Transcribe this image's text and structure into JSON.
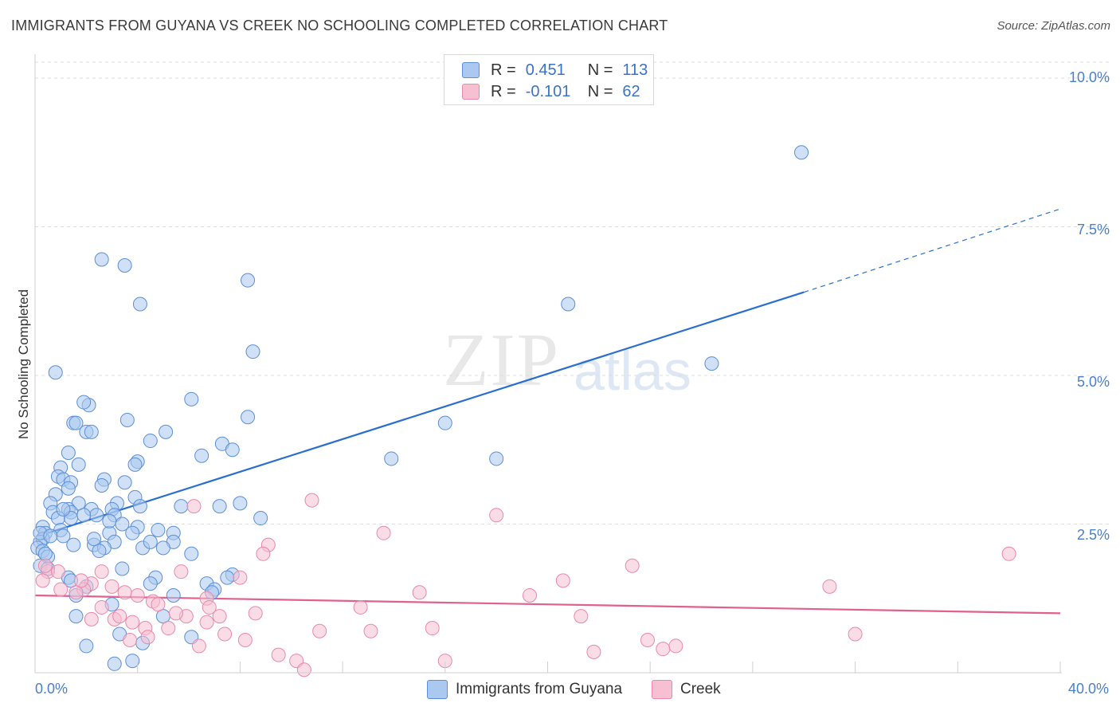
{
  "title": "IMMIGRANTS FROM GUYANA VS CREEK NO SCHOOLING COMPLETED CORRELATION CHART",
  "source": "Source: ZipAtlas.com",
  "watermark": {
    "zip": "ZIP",
    "atlas": "atlas"
  },
  "colors": {
    "blue_fill": "#aac8f0",
    "blue_stroke": "#5b8fd6",
    "blue_line": "#2a6fd0",
    "pink_fill": "#f6bfd2",
    "pink_stroke": "#e889aa",
    "pink_line": "#e0608e",
    "grid": "#dcdcdc",
    "tick_text": "#4a7fc9"
  },
  "legend": {
    "rows": [
      {
        "r_label": "R =",
        "r_value": "0.451",
        "n_label": "N =",
        "n_value": "113"
      },
      {
        "r_label": "R =",
        "r_value": "-0.101",
        "n_label": "N =",
        "n_value": "62"
      }
    ]
  },
  "bottom_legend": {
    "series1": "Immigrants from Guyana",
    "series2": "Creek"
  },
  "chart_data": {
    "type": "scatter",
    "title": "IMMIGRANTS FROM GUYANA VS CREEK NO SCHOOLING COMPLETED CORRELATION CHART",
    "xlabel": "",
    "ylabel": "No Schooling Completed",
    "xlim": [
      0,
      40
    ],
    "ylim": [
      0,
      10.5
    ],
    "x_tick_labels": [
      "0.0%",
      "40.0%"
    ],
    "y_ticks": [
      2.5,
      5.0,
      7.5,
      10.0
    ],
    "y_tick_labels": [
      "2.5%",
      "5.0%",
      "7.5%",
      "10.0%"
    ],
    "series": [
      {
        "name": "Immigrants from Guyana",
        "R": 0.451,
        "N": 113,
        "trend": {
          "x0": 0.5,
          "y0": 2.35,
          "x1": 30.0,
          "y1": 6.4,
          "dash_to_x": 40.0,
          "dash_to_y": 7.8
        },
        "points": [
          [
            2.6,
            6.95
          ],
          [
            3.5,
            6.85
          ],
          [
            8.3,
            6.6
          ],
          [
            4.1,
            6.2
          ],
          [
            8.5,
            5.4
          ],
          [
            0.8,
            5.05
          ],
          [
            6.1,
            4.6
          ],
          [
            2.1,
            4.5
          ],
          [
            1.9,
            4.55
          ],
          [
            8.3,
            4.3
          ],
          [
            3.6,
            4.25
          ],
          [
            1.5,
            4.2
          ],
          [
            1.6,
            4.2
          ],
          [
            2.0,
            4.05
          ],
          [
            2.2,
            4.05
          ],
          [
            5.1,
            4.05
          ],
          [
            4.5,
            3.9
          ],
          [
            7.3,
            3.85
          ],
          [
            1.3,
            3.7
          ],
          [
            6.5,
            3.65
          ],
          [
            7.7,
            3.75
          ],
          [
            4.0,
            3.55
          ],
          [
            3.9,
            3.5
          ],
          [
            1.7,
            3.5
          ],
          [
            1.0,
            3.45
          ],
          [
            0.9,
            3.3
          ],
          [
            1.1,
            3.25
          ],
          [
            2.7,
            3.25
          ],
          [
            1.4,
            3.2
          ],
          [
            2.6,
            3.15
          ],
          [
            3.5,
            3.2
          ],
          [
            1.3,
            3.1
          ],
          [
            0.8,
            3.0
          ],
          [
            3.9,
            2.95
          ],
          [
            3.2,
            2.85
          ],
          [
            1.7,
            2.85
          ],
          [
            0.6,
            2.85
          ],
          [
            2.2,
            2.75
          ],
          [
            1.3,
            2.75
          ],
          [
            3.0,
            2.75
          ],
          [
            4.1,
            2.8
          ],
          [
            5.7,
            2.8
          ],
          [
            7.2,
            2.8
          ],
          [
            8.0,
            2.85
          ],
          [
            0.7,
            2.7
          ],
          [
            1.4,
            2.7
          ],
          [
            2.4,
            2.65
          ],
          [
            1.9,
            2.65
          ],
          [
            3.1,
            2.65
          ],
          [
            0.9,
            2.6
          ],
          [
            1.4,
            2.6
          ],
          [
            8.8,
            2.6
          ],
          [
            3.4,
            2.5
          ],
          [
            1.0,
            2.4
          ],
          [
            0.3,
            2.45
          ],
          [
            4.0,
            2.45
          ],
          [
            4.8,
            2.4
          ],
          [
            0.4,
            2.35
          ],
          [
            2.9,
            2.35
          ],
          [
            3.8,
            2.35
          ],
          [
            5.4,
            2.35
          ],
          [
            1.1,
            2.3
          ],
          [
            0.3,
            2.25
          ],
          [
            3.1,
            2.2
          ],
          [
            2.3,
            2.15
          ],
          [
            1.5,
            2.15
          ],
          [
            5.4,
            2.2
          ],
          [
            0.2,
            2.2
          ],
          [
            2.7,
            2.1
          ],
          [
            4.2,
            2.1
          ],
          [
            5.0,
            2.1
          ],
          [
            0.1,
            2.1
          ],
          [
            2.5,
            2.05
          ],
          [
            0.3,
            2.05
          ],
          [
            6.1,
            2.0
          ],
          [
            0.5,
            1.95
          ],
          [
            0.2,
            1.8
          ],
          [
            0.5,
            1.75
          ],
          [
            3.4,
            1.75
          ],
          [
            7.7,
            1.65
          ],
          [
            1.3,
            1.6
          ],
          [
            4.7,
            1.6
          ],
          [
            1.4,
            1.55
          ],
          [
            4.5,
            1.5
          ],
          [
            6.7,
            1.5
          ],
          [
            2.0,
            1.45
          ],
          [
            7.0,
            1.4
          ],
          [
            6.9,
            1.35
          ],
          [
            1.6,
            1.3
          ],
          [
            5.4,
            1.3
          ],
          [
            3.0,
            1.15
          ],
          [
            1.6,
            0.95
          ],
          [
            5.0,
            0.95
          ],
          [
            3.3,
            0.65
          ],
          [
            6.1,
            0.6
          ],
          [
            4.2,
            0.5
          ],
          [
            2.0,
            0.45
          ],
          [
            3.8,
            0.2
          ],
          [
            3.1,
            0.15
          ],
          [
            0.2,
            2.35
          ],
          [
            0.6,
            2.3
          ],
          [
            29.9,
            8.75
          ],
          [
            20.8,
            6.2
          ],
          [
            26.4,
            5.2
          ],
          [
            16.0,
            4.2
          ],
          [
            13.9,
            3.6
          ],
          [
            18.0,
            3.6
          ],
          [
            2.3,
            2.25
          ],
          [
            0.4,
            2.0
          ],
          [
            1.1,
            2.75
          ],
          [
            2.9,
            2.55
          ],
          [
            4.5,
            2.2
          ],
          [
            7.5,
            1.6
          ]
        ]
      },
      {
        "name": "Creek",
        "R": -0.101,
        "N": 62,
        "trend": {
          "x0": 0.0,
          "y0": 1.3,
          "x1": 40.0,
          "y1": 1.0
        },
        "points": [
          [
            10.8,
            2.9
          ],
          [
            18.0,
            2.65
          ],
          [
            6.2,
            2.8
          ],
          [
            13.6,
            2.35
          ],
          [
            9.1,
            2.15
          ],
          [
            8.9,
            2.0
          ],
          [
            38.0,
            2.0
          ],
          [
            23.3,
            1.8
          ],
          [
            0.5,
            1.7
          ],
          [
            0.9,
            1.7
          ],
          [
            5.7,
            1.7
          ],
          [
            2.6,
            1.7
          ],
          [
            8.0,
            1.6
          ],
          [
            20.6,
            1.55
          ],
          [
            0.3,
            1.55
          ],
          [
            2.2,
            1.5
          ],
          [
            3.0,
            1.45
          ],
          [
            1.0,
            1.4
          ],
          [
            1.9,
            1.4
          ],
          [
            3.5,
            1.35
          ],
          [
            1.6,
            1.35
          ],
          [
            4.0,
            1.3
          ],
          [
            15.0,
            1.35
          ],
          [
            19.3,
            1.3
          ],
          [
            31.0,
            1.45
          ],
          [
            6.7,
            1.25
          ],
          [
            4.6,
            1.2
          ],
          [
            4.8,
            1.15
          ],
          [
            2.6,
            1.1
          ],
          [
            6.8,
            1.1
          ],
          [
            12.7,
            1.1
          ],
          [
            8.6,
            1.0
          ],
          [
            7.2,
            0.95
          ],
          [
            21.3,
            0.95
          ],
          [
            5.9,
            0.95
          ],
          [
            2.2,
            0.9
          ],
          [
            3.1,
            0.9
          ],
          [
            3.8,
            0.85
          ],
          [
            6.7,
            0.85
          ],
          [
            4.3,
            0.75
          ],
          [
            13.1,
            0.7
          ],
          [
            15.5,
            0.75
          ],
          [
            11.1,
            0.7
          ],
          [
            7.4,
            0.65
          ],
          [
            4.4,
            0.6
          ],
          [
            32.0,
            0.65
          ],
          [
            8.2,
            0.55
          ],
          [
            23.9,
            0.55
          ],
          [
            25.0,
            0.45
          ],
          [
            24.5,
            0.4
          ],
          [
            3.7,
            0.55
          ],
          [
            5.2,
            0.75
          ],
          [
            6.4,
            0.45
          ],
          [
            21.8,
            0.35
          ],
          [
            9.5,
            0.3
          ],
          [
            10.2,
            0.2
          ],
          [
            16.0,
            0.2
          ],
          [
            10.5,
            0.05
          ],
          [
            1.8,
            1.55
          ],
          [
            3.3,
            0.95
          ],
          [
            0.4,
            1.8
          ],
          [
            5.5,
            1.0
          ]
        ]
      }
    ]
  }
}
